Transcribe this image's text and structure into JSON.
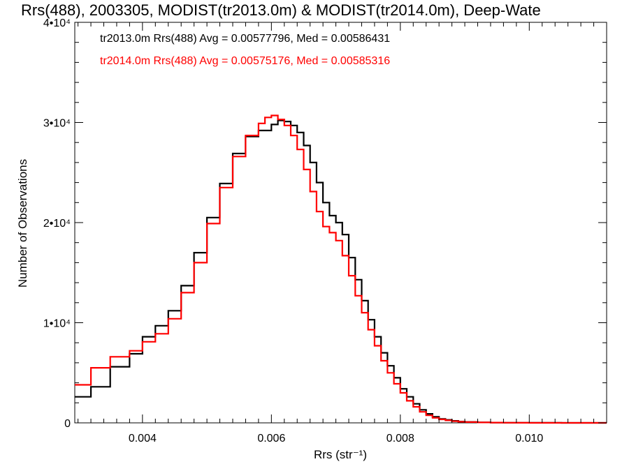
{
  "chart_data": {
    "type": "line",
    "title": "Rrs(488), 2003305, MODIST(tr2013.0m) & MODIST(tr2014.0m), Deep-Wate",
    "xlabel": "Rrs (str⁻¹)",
    "ylabel": "Number of Observations",
    "xlim": [
      0.00295,
      0.0112
    ],
    "ylim": [
      0,
      40000
    ],
    "xticks": [
      {
        "value": 0.004,
        "label": "0.004"
      },
      {
        "value": 0.006,
        "label": "0.006"
      },
      {
        "value": 0.008,
        "label": "0.008"
      },
      {
        "value": 0.01,
        "label": "0.010"
      }
    ],
    "yticks": [
      {
        "value": 0,
        "label": "0"
      },
      {
        "value": 10000,
        "label": "1•10⁴"
      },
      {
        "value": 20000,
        "label": "2•10⁴"
      },
      {
        "value": 30000,
        "label": "3•10⁴"
      },
      {
        "value": 40000,
        "label": "4•10⁴"
      }
    ],
    "legend_position": "top-left",
    "grid": false,
    "series": [
      {
        "name": "tr2013.0m Rrs(488) Avg = 0.00577796, Med = 0.00586431",
        "color": "#000000",
        "step": true,
        "x": [
          0.00295,
          0.0032,
          0.0035,
          0.0038,
          0.004,
          0.0042,
          0.0044,
          0.0046,
          0.0048,
          0.005,
          0.0052,
          0.0054,
          0.0056,
          0.0058,
          0.006,
          0.0061,
          0.0062,
          0.0063,
          0.0064,
          0.0065,
          0.0066,
          0.0067,
          0.0068,
          0.0069,
          0.007,
          0.0071,
          0.0072,
          0.0073,
          0.0074,
          0.0075,
          0.0076,
          0.0077,
          0.0078,
          0.0079,
          0.008,
          0.0081,
          0.0082,
          0.0083,
          0.0084,
          0.0085,
          0.0086,
          0.0087,
          0.0088,
          0.0089,
          0.009,
          0.0092,
          0.0094,
          0.0096,
          0.0098,
          0.01,
          0.0105,
          0.011,
          0.0112
        ],
        "y": [
          2600,
          3600,
          5600,
          6900,
          8600,
          9700,
          11200,
          13700,
          17000,
          20500,
          23900,
          26900,
          28600,
          29200,
          29800,
          30200,
          30100,
          29700,
          29000,
          27700,
          26000,
          24000,
          22000,
          20700,
          20000,
          18800,
          16500,
          14300,
          12200,
          10300,
          8600,
          7000,
          5700,
          4500,
          3400,
          2600,
          1900,
          1300,
          900,
          600,
          400,
          300,
          200,
          130,
          90,
          50,
          30,
          15,
          8,
          5,
          2,
          0,
          0
        ]
      },
      {
        "name": "tr2014.0m Rrs(488) Avg = 0.00575176, Med = 0.00585316",
        "color": "#ff0000",
        "step": true,
        "x": [
          0.00295,
          0.0032,
          0.0035,
          0.0038,
          0.004,
          0.0042,
          0.0044,
          0.0046,
          0.0048,
          0.005,
          0.0052,
          0.0054,
          0.0056,
          0.0058,
          0.0059,
          0.006,
          0.0061,
          0.0062,
          0.0063,
          0.0064,
          0.0065,
          0.0066,
          0.0067,
          0.0068,
          0.0069,
          0.007,
          0.0071,
          0.0072,
          0.0073,
          0.0074,
          0.0075,
          0.0076,
          0.0077,
          0.0078,
          0.0079,
          0.008,
          0.0081,
          0.0082,
          0.0083,
          0.0084,
          0.0085,
          0.0086,
          0.0087,
          0.0088,
          0.0089,
          0.009,
          0.0092,
          0.0094,
          0.0096,
          0.0098,
          0.01,
          0.0105,
          0.011,
          0.0112
        ],
        "y": [
          3800,
          5500,
          6600,
          7200,
          8100,
          8900,
          10400,
          13000,
          16000,
          19900,
          23500,
          26600,
          28700,
          29900,
          30500,
          30700,
          30300,
          29700,
          28700,
          27300,
          25300,
          23100,
          21100,
          19600,
          19000,
          18200,
          16700,
          14700,
          12700,
          11000,
          9300,
          7700,
          6200,
          5000,
          3900,
          3000,
          2200,
          1600,
          1100,
          750,
          500,
          350,
          250,
          170,
          110,
          75,
          40,
          25,
          12,
          6,
          3,
          1,
          0,
          0
        ]
      }
    ]
  }
}
